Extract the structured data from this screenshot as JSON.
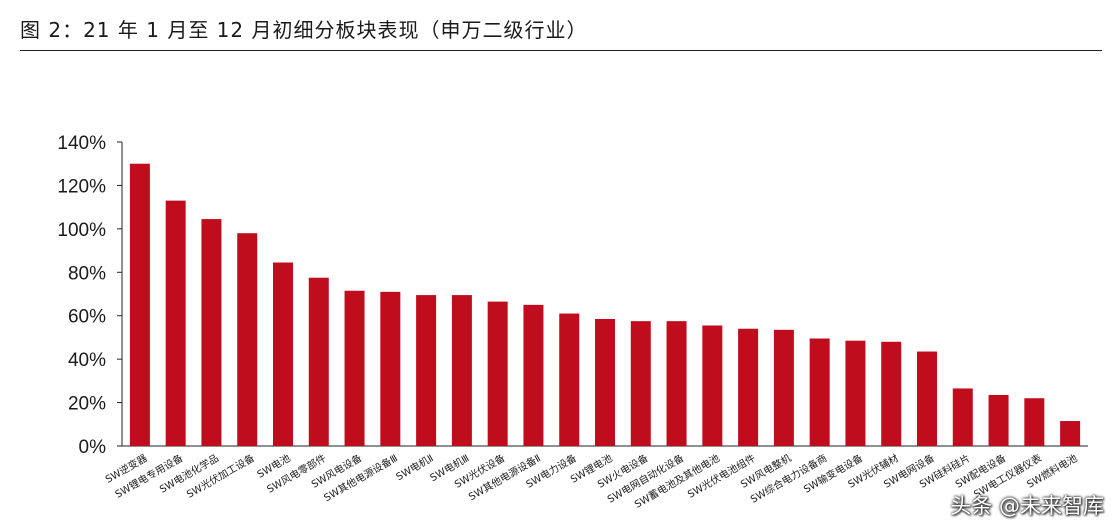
{
  "header": {
    "title": "图 2：21 年 1 月至 12 月初细分板块表现（申万二级行业）"
  },
  "watermark": "头条 @未来智库",
  "colors": {
    "bar": "#c00d1e",
    "axis": "#222222",
    "text": "#1a1a1a"
  },
  "chart_data": {
    "type": "bar",
    "title": "",
    "xlabel": "",
    "ylabel": "",
    "ylim": [
      0,
      1.4
    ],
    "yticks": [
      "0%",
      "20%",
      "40%",
      "60%",
      "80%",
      "100%",
      "120%",
      "140%"
    ],
    "grid": false,
    "categories": [
      "SW逆变器",
      "SW锂电专用设备",
      "SW电池化学品",
      "SW光伏加工设备",
      "SW电池",
      "SW风电零部件",
      "SW风电设备",
      "SW其他电源设备Ⅲ",
      "SW电机Ⅱ",
      "SW电机Ⅲ",
      "SW光伏设备",
      "SW其他电源设备Ⅱ",
      "SW电力设备",
      "SW锂电池",
      "SW火电设备",
      "SW电网自动化设备",
      "SW蓄电池及其他电池",
      "SW光伏电池组件",
      "SW风电整机",
      "SW综合电力设备商",
      "SW输变电设备",
      "SW光伏辅材",
      "SW电网设备",
      "SW硅料硅片",
      "SW配电设备",
      "SW电工仪器仪表",
      "SW燃料电池"
    ],
    "values": [
      1.3,
      1.13,
      1.045,
      0.98,
      0.845,
      0.775,
      0.715,
      0.71,
      0.695,
      0.695,
      0.665,
      0.65,
      0.61,
      0.585,
      0.575,
      0.575,
      0.555,
      0.54,
      0.535,
      0.495,
      0.485,
      0.48,
      0.435,
      0.265,
      0.235,
      0.22,
      0.115
    ]
  }
}
